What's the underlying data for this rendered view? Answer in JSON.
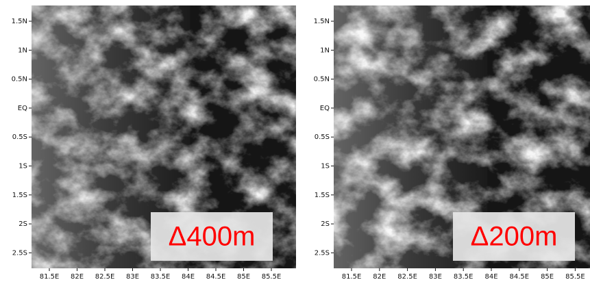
{
  "panels": [
    {
      "label": "Δ400m",
      "yticks": [
        "1.5N",
        "1N",
        "0.5N",
        "EQ",
        "0.5S",
        "1S",
        "1.5S",
        "2S",
        "2.5S"
      ],
      "xticks": [
        "81.5E",
        "82E",
        "82.5E",
        "83E",
        "83.5E",
        "84E",
        "84.5E",
        "85E",
        "85.5E"
      ]
    },
    {
      "label": "Δ200m",
      "yticks": [
        "1.5N",
        "1N",
        "0.5N",
        "EQ",
        "0.5S",
        "1S",
        "1.5S",
        "2S",
        "2.5S"
      ],
      "xticks": [
        "81.5E",
        "82E",
        "82.5E",
        "83E",
        "83.5E",
        "84E",
        "84.5E",
        "85E",
        "85.5E"
      ]
    }
  ]
}
